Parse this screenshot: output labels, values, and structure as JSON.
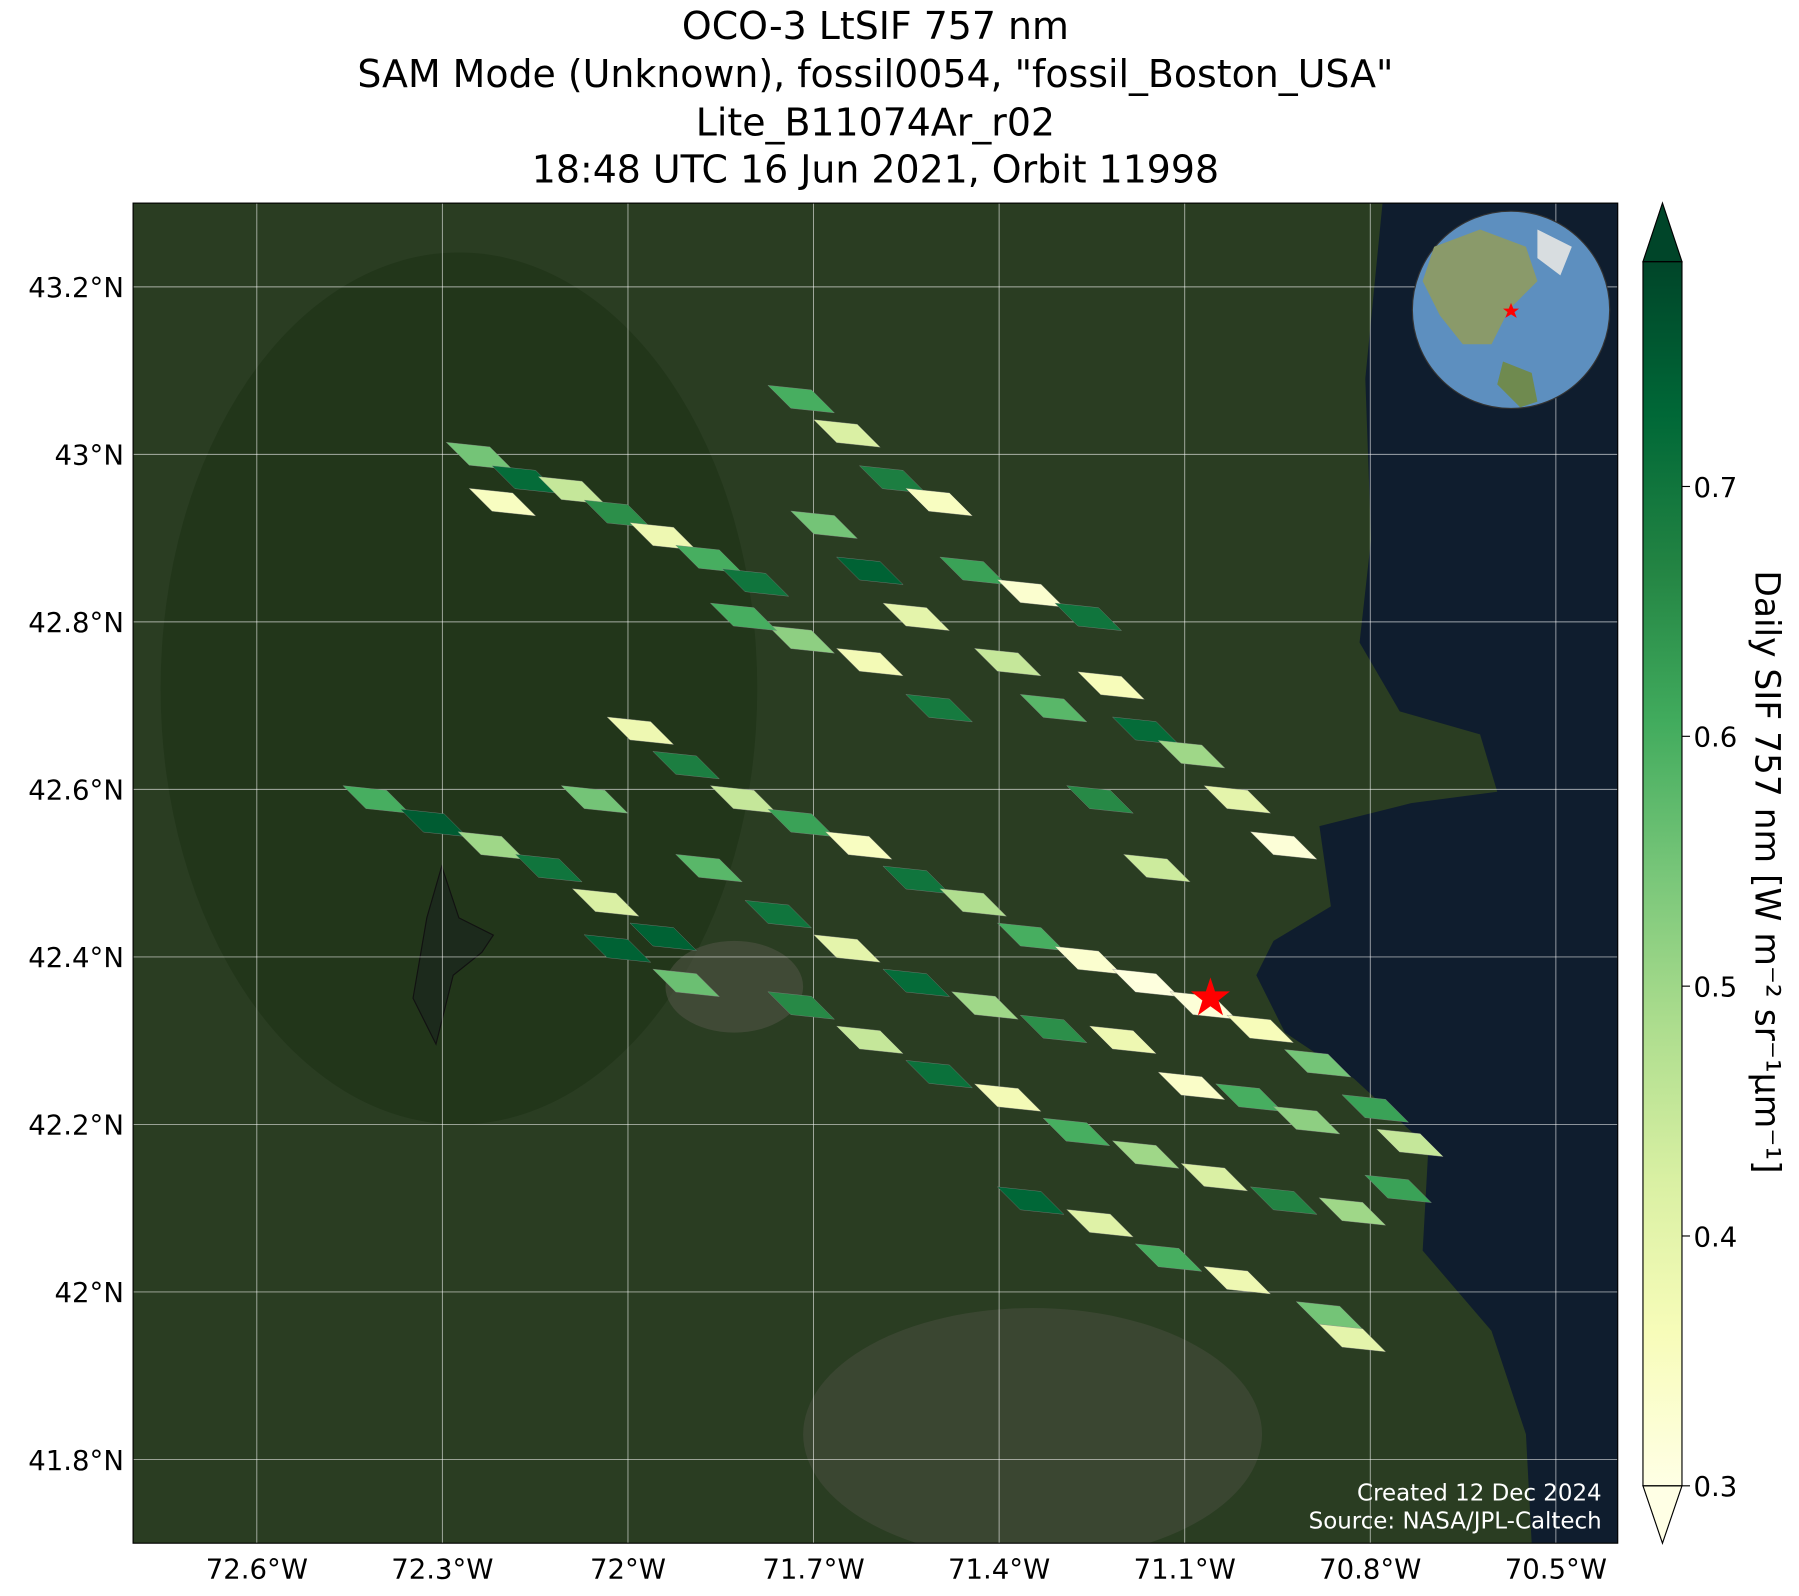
{
  "chart_data": {
    "type": "map",
    "title": [
      "OCO-3 LtSIF 757 nm",
      "SAM Mode (Unknown), fossil0054, \"fossil_Boston_USA\"",
      "Lite_B11074Ar_r02",
      "18:48 UTC 16 Jun 2021, Orbit 11998"
    ],
    "colorbar_label": "Daily SIF 757 nm [W m⁻² sr⁻¹μm⁻¹]",
    "annotations": [
      "Created 12 Dec 2024",
      "Source: NASA/JPL-Caltech"
    ],
    "colormap": "YlGn",
    "grid": true,
    "xlim": [
      -72.8,
      -70.4
    ],
    "ylim": [
      41.7,
      43.3
    ],
    "xticks": [
      {
        "value": -72.6,
        "label": "72.6°W"
      },
      {
        "value": -72.3,
        "label": "72.3°W"
      },
      {
        "value": -72.0,
        "label": "72°W"
      },
      {
        "value": -71.7,
        "label": "71.7°W"
      },
      {
        "value": -71.4,
        "label": "71.4°W"
      },
      {
        "value": -71.1,
        "label": "71.1°W"
      },
      {
        "value": -70.8,
        "label": "70.8°W"
      },
      {
        "value": -70.5,
        "label": "70.5°W"
      }
    ],
    "yticks": [
      {
        "value": 41.8,
        "label": "41.8°N"
      },
      {
        "value": 42.0,
        "label": "42°N"
      },
      {
        "value": 42.2,
        "label": "42.2°N"
      },
      {
        "value": 42.4,
        "label": "42.4°N"
      },
      {
        "value": 42.6,
        "label": "42.6°N"
      },
      {
        "value": 42.8,
        "label": "42.8°N"
      },
      {
        "value": 43.0,
        "label": "43°N"
      },
      {
        "value": 43.2,
        "label": "43.2°N"
      }
    ],
    "clim": [
      0.3,
      0.79
    ],
    "cticks": [
      0.3,
      0.4,
      0.5,
      0.6,
      0.7
    ],
    "lon": [
      -72.24,
      -72.166,
      -72.091,
      -72.017,
      -71.943,
      -71.869,
      -71.794,
      -72.203,
      -71.72,
      -71.646,
      -71.572,
      -71.497,
      -71.683,
      -71.609,
      -71.534,
      -71.442,
      -71.349,
      -71.256,
      -71.386,
      -71.312,
      -71.219,
      -71.163,
      -71.089,
      -71.015,
      -70.94,
      -71.237,
      -71.145,
      -71.609,
      -71.497,
      -71.72,
      -71.813,
      -72.407,
      -72.314,
      -72.221,
      -72.128,
      -72.036,
      -71.943,
      -72.054,
      -71.98,
      -71.906,
      -71.813,
      -71.72,
      -71.627,
      -71.534,
      -71.442,
      -71.349,
      -71.256,
      -71.163,
      -71.07,
      -70.978,
      -70.885,
      -70.792,
      -70.736,
      -71.869,
      -71.757,
      -71.646,
      -71.534,
      -71.423,
      -71.312,
      -71.2,
      -71.089,
      -70.996,
      -70.903,
      -71.72,
      -71.609,
      -71.497,
      -71.386,
      -71.275,
      -71.163,
      -71.052,
      -70.94,
      -70.829,
      -70.755,
      -71.349,
      -71.237,
      -71.126,
      -71.015,
      -70.866,
      -70.829,
      -71.906,
      -72.017
    ],
    "lat": [
      42.998,
      42.97,
      42.957,
      42.929,
      42.902,
      42.875,
      42.847,
      42.943,
      43.066,
      43.025,
      42.97,
      42.943,
      42.916,
      42.861,
      42.806,
      42.861,
      42.834,
      42.806,
      42.752,
      42.697,
      42.724,
      42.67,
      42.642,
      42.588,
      42.533,
      42.588,
      42.506,
      42.752,
      42.697,
      42.779,
      42.806,
      42.588,
      42.56,
      42.533,
      42.506,
      42.465,
      42.424,
      42.588,
      42.67,
      42.629,
      42.588,
      42.56,
      42.533,
      42.492,
      42.465,
      42.424,
      42.396,
      42.369,
      42.342,
      42.314,
      42.273,
      42.219,
      42.178,
      42.506,
      42.451,
      42.41,
      42.369,
      42.342,
      42.314,
      42.301,
      42.246,
      42.232,
      42.205,
      42.342,
      42.301,
      42.26,
      42.232,
      42.191,
      42.164,
      42.137,
      42.109,
      42.096,
      42.123,
      42.109,
      42.082,
      42.041,
      42.014,
      41.972,
      41.945,
      42.369,
      42.41
    ],
    "values": [
      0.55,
      0.72,
      0.45,
      0.65,
      0.38,
      0.6,
      0.7,
      0.35,
      0.6,
      0.42,
      0.68,
      0.35,
      0.55,
      0.74,
      0.4,
      0.62,
      0.33,
      0.7,
      0.45,
      0.58,
      0.36,
      0.72,
      0.5,
      0.4,
      0.32,
      0.66,
      0.44,
      0.37,
      0.69,
      0.52,
      0.6,
      0.6,
      0.75,
      0.5,
      0.7,
      0.42,
      0.74,
      0.55,
      0.38,
      0.68,
      0.45,
      0.62,
      0.35,
      0.7,
      0.48,
      0.6,
      0.33,
      0.31,
      0.32,
      0.36,
      0.55,
      0.62,
      0.45,
      0.58,
      0.7,
      0.4,
      0.72,
      0.5,
      0.65,
      0.38,
      0.34,
      0.6,
      0.52,
      0.66,
      0.45,
      0.71,
      0.37,
      0.6,
      0.5,
      0.42,
      0.67,
      0.5,
      0.62,
      0.73,
      0.41,
      0.6,
      0.38,
      0.55,
      0.4,
      0.56,
      0.74
    ]
  }
}
